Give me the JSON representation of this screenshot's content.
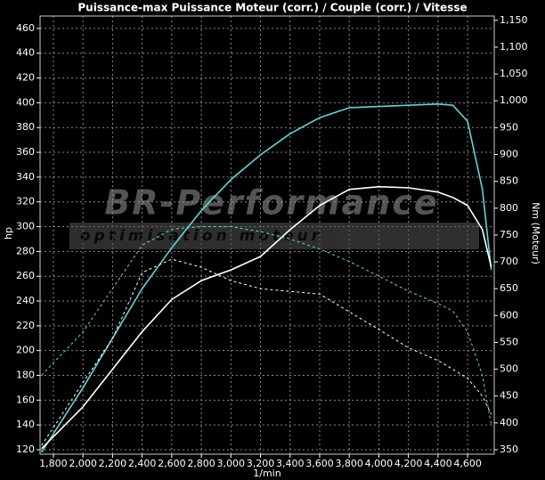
{
  "chart_data": {
    "type": "line",
    "title": "Puissance-max Puissance Moteur (corr.) / Couple (corr.) / Vitesse",
    "x_label": "1/min",
    "y_label": "hp",
    "y2_label": "Nm (Moteur)",
    "watermark": [
      "BR-Performance",
      "optimisation moteur"
    ],
    "x": [
      1720,
      2000,
      2200,
      2400,
      2600,
      2800,
      3000,
      3200,
      3400,
      3600,
      3800,
      4000,
      4200,
      4400,
      4500,
      4600,
      4700,
      4760
    ],
    "series": [
      {
        "color": "#5fd6d8",
        "style": "solid",
        "axis": "y",
        "values": [
          118,
          170,
          210,
          250,
          283,
          313,
          338,
          358,
          375,
          388,
          396,
          397,
          398,
          399,
          398,
          385,
          330,
          265
        ]
      },
      {
        "color": "#ffffff",
        "style": "solid",
        "axis": "y2",
        "values": [
          352,
          430,
          500,
          570,
          630,
          665,
          685,
          710,
          760,
          805,
          835,
          840,
          838,
          830,
          820,
          805,
          760,
          690
        ]
      },
      {
        "color": "#5fd6d8",
        "style": "dashed",
        "axis": "y",
        "values": [
          180,
          215,
          250,
          285,
          298,
          300,
          300,
          296,
          290,
          282,
          272,
          260,
          248,
          238,
          232,
          215,
          180,
          140
        ]
      },
      {
        "color": "#ffffff",
        "style": "dashed",
        "axis": "y2",
        "values": [
          358,
          475,
          557,
          680,
          705,
          690,
          665,
          650,
          645,
          640,
          607,
          574,
          540,
          516,
          500,
          483,
          450,
          416
        ]
      }
    ],
    "xlim": [
      1710,
      4780
    ],
    "xticks": [
      {
        "value": 1800,
        "label": "1,800"
      },
      {
        "value": 2000,
        "label": "2,000"
      },
      {
        "value": 2200,
        "label": "2,200"
      },
      {
        "value": 2400,
        "label": "2,400"
      },
      {
        "value": 2600,
        "label": "2,600"
      },
      {
        "value": 2800,
        "label": "2,800"
      },
      {
        "value": 3000,
        "label": "3,000"
      },
      {
        "value": 3200,
        "label": "3,200"
      },
      {
        "value": 3400,
        "label": "3,400"
      },
      {
        "value": 3600,
        "label": "3,600"
      },
      {
        "value": 3800,
        "label": "3,800"
      },
      {
        "value": 4000,
        "label": "4,000"
      },
      {
        "value": 4200,
        "label": "4,200"
      },
      {
        "value": 4400,
        "label": "4,400"
      },
      {
        "value": 4600,
        "label": "4,600"
      }
    ],
    "ylim": [
      116.4,
      470
    ],
    "yticks": [
      120,
      140,
      160,
      180,
      200,
      220,
      240,
      260,
      280,
      300,
      320,
      340,
      360,
      380,
      400,
      420,
      440,
      460
    ],
    "y2lim": [
      341.7,
      1158
    ],
    "y2ticks": [
      350,
      400,
      450,
      500,
      550,
      600,
      650,
      700,
      750,
      800,
      850,
      900,
      950,
      {
        "value": 1000,
        "label": "1,000"
      },
      {
        "value": 1050,
        "label": "1,050"
      },
      {
        "value": 1100,
        "label": "1,100"
      },
      {
        "value": 1150,
        "label": "1,150"
      }
    ],
    "grid": true
  }
}
